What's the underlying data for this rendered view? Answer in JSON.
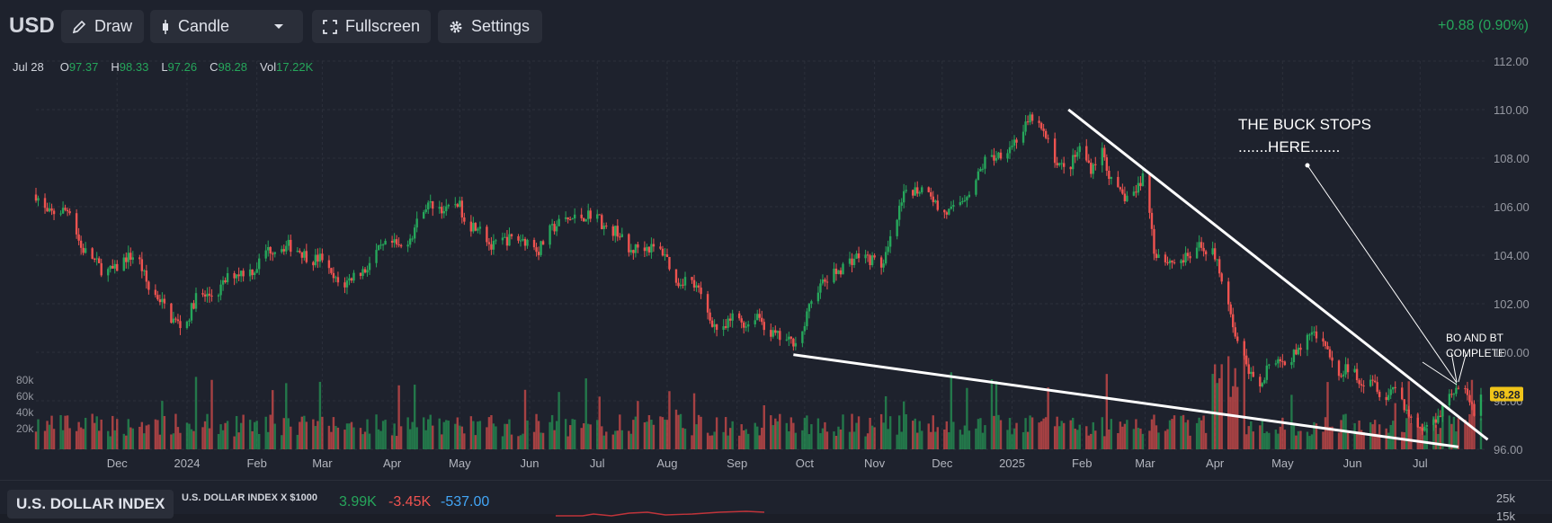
{
  "toolbar": {
    "symbol": "USD",
    "draw_label": "Draw",
    "chart_type_label": "Candle",
    "fullscreen_label": "Fullscreen",
    "settings_label": "Settings",
    "change_text": "+0.88 (0.90%)"
  },
  "legend": {
    "date": "Jul 28",
    "o_label": "O",
    "o_value": "97.37",
    "h_label": "H",
    "h_value": "98.33",
    "l_label": "L",
    "l_value": "97.26",
    "c_label": "C",
    "c_value": "98.28",
    "vol_label": "Vol",
    "vol_value": "17.22K"
  },
  "colors": {
    "background": "#1e222d",
    "up": "#26a65b",
    "down": "#ef5350",
    "grid": "#2c303b",
    "price_tag": "#f0c419",
    "annotation": "#ffffff"
  },
  "chart_data": {
    "type": "candlestick",
    "title": "USD",
    "price_axis_ticks": [
      "112.00",
      "110.00",
      "108.00",
      "106.00",
      "104.00",
      "102.00",
      "100.00",
      "98.00",
      "96.00"
    ],
    "volume_axis_ticks": [
      "80k",
      "60k",
      "40k",
      "20k"
    ],
    "ylim": [
      96,
      112
    ],
    "x_tick_labels": [
      "Dec",
      "2024",
      "Feb",
      "Mar",
      "Apr",
      "May",
      "Jun",
      "Jul",
      "Aug",
      "Sep",
      "Oct",
      "Nov",
      "Dec",
      "2025",
      "Feb",
      "Mar",
      "Apr",
      "May",
      "Jun",
      "Jul"
    ],
    "last_price": "98.28",
    "close_path": [
      [
        "2023-10-26",
        106.5
      ],
      [
        "2023-10-31",
        105.7
      ],
      [
        "2023-11-05",
        105.8
      ],
      [
        "2023-11-10",
        105.9
      ],
      [
        "2023-11-15",
        104.3
      ],
      [
        "2023-11-20",
        103.9
      ],
      [
        "2023-11-25",
        103.3
      ],
      [
        "2023-11-30",
        103.4
      ],
      [
        "2023-12-05",
        103.9
      ],
      [
        "2023-12-10",
        104.0
      ],
      [
        "2023-12-15",
        102.6
      ],
      [
        "2023-12-20",
        102.2
      ],
      [
        "2023-12-25",
        101.4
      ],
      [
        "2023-12-31",
        101.0
      ],
      [
        "2024-01-05",
        102.3
      ],
      [
        "2024-01-10",
        102.3
      ],
      [
        "2024-01-15",
        102.5
      ],
      [
        "2024-01-20",
        103.2
      ],
      [
        "2024-01-25",
        103.3
      ],
      [
        "2024-01-31",
        103.4
      ],
      [
        "2024-02-05",
        104.2
      ],
      [
        "2024-02-10",
        104.3
      ],
      [
        "2024-02-15",
        104.4
      ],
      [
        "2024-02-20",
        104.2
      ],
      [
        "2024-02-25",
        103.8
      ],
      [
        "2024-03-01",
        103.9
      ],
      [
        "2024-03-05",
        103.1
      ],
      [
        "2024-03-10",
        102.7
      ],
      [
        "2024-03-15",
        103.2
      ],
      [
        "2024-03-20",
        103.4
      ],
      [
        "2024-03-25",
        104.1
      ],
      [
        "2024-03-31",
        104.5
      ],
      [
        "2024-04-05",
        104.3
      ],
      [
        "2024-04-10",
        104.9
      ],
      [
        "2024-04-15",
        106.0
      ],
      [
        "2024-04-20",
        106.1
      ],
      [
        "2024-04-25",
        105.8
      ],
      [
        "2024-04-30",
        106.2
      ],
      [
        "2024-05-05",
        105.2
      ],
      [
        "2024-05-10",
        105.3
      ],
      [
        "2024-05-15",
        104.3
      ],
      [
        "2024-05-20",
        104.6
      ],
      [
        "2024-05-25",
        104.7
      ],
      [
        "2024-05-31",
        104.6
      ],
      [
        "2024-06-05",
        104.2
      ],
      [
        "2024-06-10",
        105.0
      ],
      [
        "2024-06-15",
        105.4
      ],
      [
        "2024-06-20",
        105.5
      ],
      [
        "2024-06-25",
        105.6
      ],
      [
        "2024-06-30",
        105.8
      ],
      [
        "2024-07-05",
        105.0
      ],
      [
        "2024-07-10",
        105.0
      ],
      [
        "2024-07-15",
        104.1
      ],
      [
        "2024-07-20",
        104.4
      ],
      [
        "2024-07-25",
        104.3
      ],
      [
        "2024-07-31",
        104.1
      ],
      [
        "2024-08-05",
        102.8
      ],
      [
        "2024-08-10",
        103.1
      ],
      [
        "2024-08-15",
        102.5
      ],
      [
        "2024-08-20",
        101.4
      ],
      [
        "2024-08-25",
        100.7
      ],
      [
        "2024-08-31",
        101.6
      ],
      [
        "2024-09-05",
        101.1
      ],
      [
        "2024-09-10",
        101.6
      ],
      [
        "2024-09-15",
        100.8
      ],
      [
        "2024-09-20",
        100.6
      ],
      [
        "2024-09-25",
        100.4
      ],
      [
        "2024-09-30",
        100.8
      ],
      [
        "2024-10-05",
        102.5
      ],
      [
        "2024-10-10",
        102.9
      ],
      [
        "2024-10-15",
        103.3
      ],
      [
        "2024-10-20",
        103.7
      ],
      [
        "2024-10-25",
        104.0
      ],
      [
        "2024-10-31",
        103.8
      ],
      [
        "2024-11-05",
        103.6
      ],
      [
        "2024-11-10",
        105.2
      ],
      [
        "2024-11-15",
        106.7
      ],
      [
        "2024-11-20",
        106.7
      ],
      [
        "2024-11-25",
        106.8
      ],
      [
        "2024-11-30",
        105.7
      ],
      [
        "2024-12-05",
        105.8
      ],
      [
        "2024-12-10",
        106.3
      ],
      [
        "2024-12-15",
        106.9
      ],
      [
        "2024-12-20",
        107.9
      ],
      [
        "2024-12-25",
        108.1
      ],
      [
        "2024-12-31",
        108.5
      ],
      [
        "2025-01-05",
        109.0
      ],
      [
        "2025-01-10",
        109.7
      ],
      [
        "2025-01-15",
        109.0
      ],
      [
        "2025-01-20",
        108.0
      ],
      [
        "2025-01-25",
        107.4
      ],
      [
        "2025-01-31",
        108.4
      ],
      [
        "2025-02-05",
        107.6
      ],
      [
        "2025-02-10",
        108.3
      ],
      [
        "2025-02-15",
        106.7
      ],
      [
        "2025-02-20",
        106.4
      ],
      [
        "2025-02-25",
        106.6
      ],
      [
        "2025-03-01",
        107.5
      ],
      [
        "2025-03-05",
        104.2
      ],
      [
        "2025-03-10",
        103.8
      ],
      [
        "2025-03-15",
        103.7
      ],
      [
        "2025-03-20",
        103.9
      ],
      [
        "2025-03-25",
        104.3
      ],
      [
        "2025-03-31",
        104.2
      ],
      [
        "2025-04-05",
        102.9
      ],
      [
        "2025-04-10",
        100.8
      ],
      [
        "2025-04-15",
        99.4
      ],
      [
        "2025-04-20",
        98.5
      ],
      [
        "2025-04-25",
        99.5
      ],
      [
        "2025-04-30",
        99.5
      ],
      [
        "2025-05-05",
        99.8
      ],
      [
        "2025-05-10",
        100.3
      ],
      [
        "2025-05-15",
        100.9
      ],
      [
        "2025-05-20",
        100.1
      ],
      [
        "2025-05-25",
        99.1
      ],
      [
        "2025-05-31",
        99.4
      ],
      [
        "2025-06-05",
        98.8
      ],
      [
        "2025-06-10",
        99.0
      ],
      [
        "2025-06-15",
        98.0
      ],
      [
        "2025-06-20",
        98.7
      ],
      [
        "2025-06-25",
        97.6
      ],
      [
        "2025-06-30",
        96.9
      ],
      [
        "2025-07-05",
        96.9
      ],
      [
        "2025-07-10",
        97.6
      ],
      [
        "2025-07-15",
        98.4
      ],
      [
        "2025-07-20",
        98.5
      ],
      [
        "2025-07-25",
        97.6
      ],
      [
        "2025-07-28",
        98.28
      ]
    ],
    "annotations": {
      "callout_1_line1": "THE BUCK STOPS",
      "callout_1_line2": ".......HERE.......",
      "callout_2_line1": "BO AND BT",
      "callout_2_line2": "COMPLETE",
      "trendlines": [
        {
          "name": "upper-trendline",
          "from": [
            "2025-01-26",
            110.0
          ],
          "to": [
            "2025-07-31",
            96.4
          ]
        },
        {
          "name": "lower-trendline",
          "from": [
            "2024-09-26",
            99.9
          ],
          "to": [
            "2025-07-18",
            96.1
          ]
        }
      ]
    }
  },
  "lower_panel": {
    "index_button_label": "U.S. DOLLAR INDEX",
    "subtitle": "U.S. DOLLAR INDEX X $1000",
    "value_1": "3.99K",
    "value_2": "-3.45K",
    "value_3": "-537.00",
    "axis_tick_1": "25k",
    "axis_tick_2": "15k"
  }
}
